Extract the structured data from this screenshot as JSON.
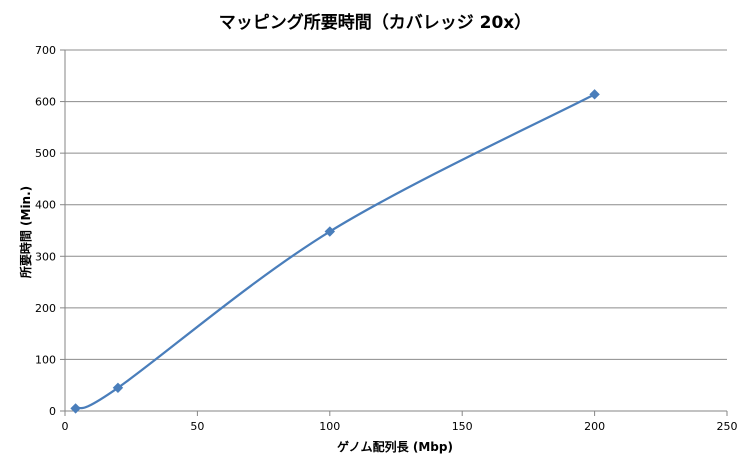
{
  "chart_data": {
    "type": "scatter",
    "title": "マッピング所要時間（カバレッジ 20x）",
    "xlabel": "ゲノム配列長 (Mbp)",
    "ylabel": "所要時間 (Min.)",
    "xlim": [
      0,
      250
    ],
    "ylim": [
      0,
      700
    ],
    "xticks": [
      "0",
      "50",
      "100",
      "150",
      "200",
      "250"
    ],
    "yticks": [
      "0",
      "100",
      "200",
      "300",
      "400",
      "500",
      "600",
      "700"
    ],
    "grid": "horizontal major gridlines",
    "legend": "none",
    "line_style": "smoothed line with diamond markers",
    "series": [
      {
        "x": [
          4,
          20,
          100,
          200
        ],
        "y": [
          5,
          45,
          348,
          614
        ],
        "color": "#4a7ebb"
      }
    ]
  }
}
